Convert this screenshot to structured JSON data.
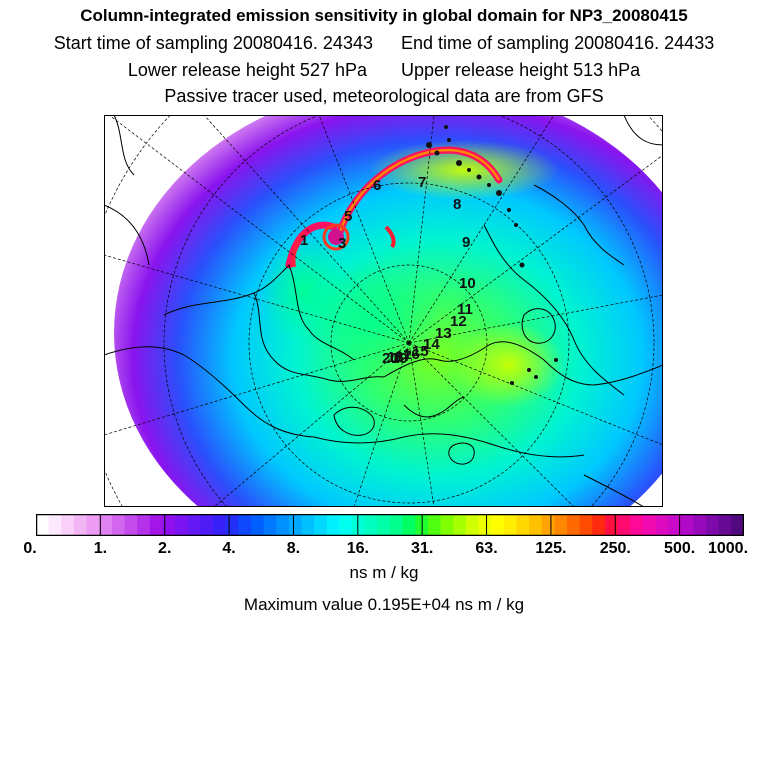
{
  "title": "Column-integrated emission sensitivity in global domain for NP3_20080415",
  "sampling": {
    "start": "Start time of sampling 20080416. 24343",
    "end": "End time of sampling 20080416. 24433"
  },
  "release": {
    "lower": "Lower release height  527 hPa",
    "upper": "Upper release height  513 hPa"
  },
  "tracer_note": "Passive tracer used, meteorological data are from GFS",
  "colorbar": {
    "ticks": [
      "0.",
      "1.",
      "2.",
      "4.",
      "8.",
      "16.",
      "31.",
      "63.",
      "125.",
      "250.",
      "500.",
      "1000."
    ],
    "colors": [
      "#ffffff",
      "#fde9fd",
      "#f8d0f8",
      "#f2b6f4",
      "#ec9cf2",
      "#e082f0",
      "#d267ee",
      "#c44cec",
      "#b531ea",
      "#a416e8",
      "#9010f0",
      "#7a14f2",
      "#6418f4",
      "#4e1cf6",
      "#3820f8",
      "#2230fa",
      "#1048fc",
      "#0060ff",
      "#0078ff",
      "#0090ff",
      "#00a8ff",
      "#00c0ff",
      "#00d8ff",
      "#00f0ff",
      "#00ffee",
      "#00ffd6",
      "#00ffbe",
      "#00ffa6",
      "#00ff8e",
      "#00ff60",
      "#20ff30",
      "#50ff10",
      "#80ff00",
      "#a8ff00",
      "#cfff00",
      "#eeff00",
      "#ffff00",
      "#ffee00",
      "#ffd800",
      "#ffc000",
      "#ffa400",
      "#ff8800",
      "#ff6a00",
      "#ff4c00",
      "#ff2a10",
      "#ff1040",
      "#ff0a70",
      "#ff0a98",
      "#f00ab0",
      "#de0ac0",
      "#c80ac8",
      "#b00ac8",
      "#960abc",
      "#7e0aaa",
      "#660a94",
      "#500a7e"
    ],
    "unit": "ns m / kg"
  },
  "max_value_text": "Maximum value  0.195E+04 ns m / kg",
  "track_labels": [
    "1",
    "3",
    "5",
    "6",
    "7",
    "8",
    "9",
    "10",
    "11",
    "12",
    "13",
    "14",
    "15",
    "16",
    "17",
    "18",
    "19",
    "20"
  ]
}
